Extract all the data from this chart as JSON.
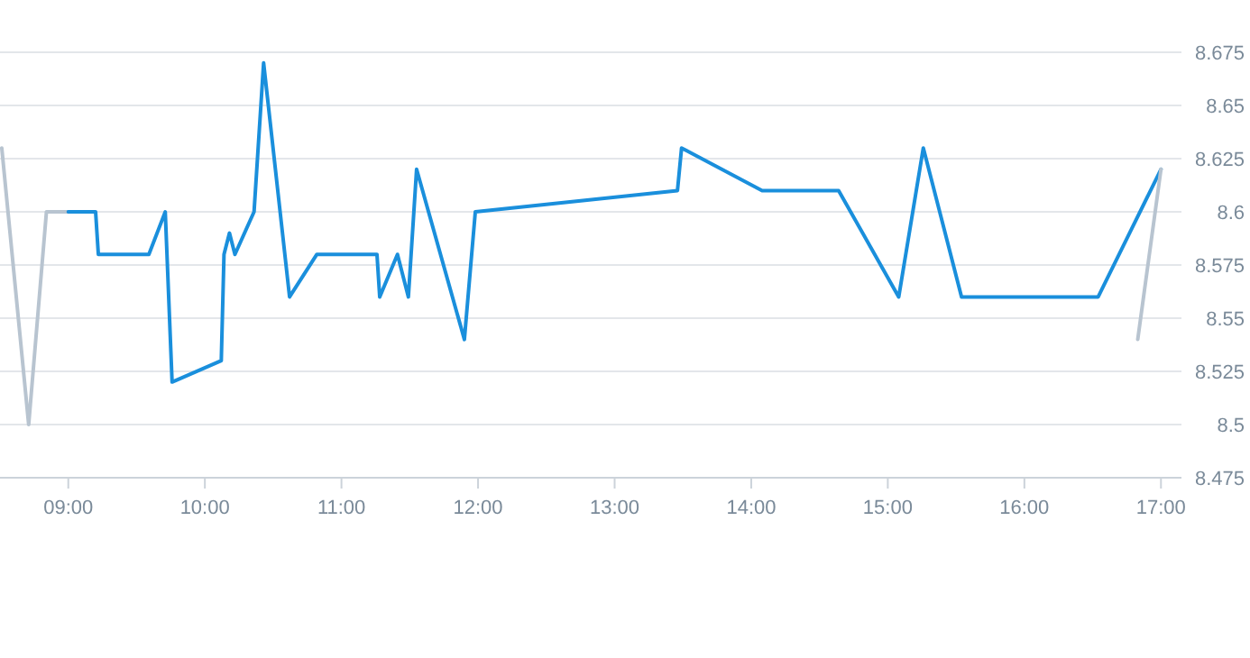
{
  "chart_data": {
    "type": "line",
    "xlim": [
      8.5,
      17.15
    ],
    "ylim": [
      8.475,
      8.675
    ],
    "yticks": [
      8.475,
      8.5,
      8.525,
      8.55,
      8.575,
      8.6,
      8.625,
      8.65,
      8.675
    ],
    "xticks": [
      {
        "value": 9,
        "label": "09:00"
      },
      {
        "value": 10,
        "label": "10:00"
      },
      {
        "value": 11,
        "label": "11:00"
      },
      {
        "value": 12,
        "label": "12:00"
      },
      {
        "value": 13,
        "label": "13:00"
      },
      {
        "value": 14,
        "label": "14:00"
      },
      {
        "value": 15,
        "label": "15:00"
      },
      {
        "value": 16,
        "label": "16:00"
      },
      {
        "value": 17,
        "label": "17:00"
      }
    ],
    "grid": "y",
    "marker": "none",
    "line_style": "solid",
    "series": [
      {
        "color": "#b8c4d0",
        "x": [
          8.513,
          8.71,
          8.84,
          9.0
        ],
        "values": [
          8.63,
          8.5,
          8.6,
          8.6
        ]
      },
      {
        "color": "#1a8fdc",
        "x": [
          9.0,
          9.2,
          9.22,
          9.59,
          9.71,
          9.76,
          10.12,
          10.14,
          10.18,
          10.22,
          10.36,
          10.43,
          10.62,
          10.82,
          11.26,
          11.28,
          11.41,
          11.49,
          11.55,
          11.9,
          11.98,
          13.46,
          13.49,
          14.08,
          14.64,
          15.08,
          15.26,
          15.54,
          16.54,
          17.0
        ],
        "values": [
          8.6,
          8.6,
          8.58,
          8.58,
          8.6,
          8.52,
          8.53,
          8.58,
          8.59,
          8.58,
          8.6,
          8.67,
          8.56,
          8.58,
          8.58,
          8.56,
          8.58,
          8.56,
          8.62,
          8.54,
          8.6,
          8.61,
          8.63,
          8.61,
          8.61,
          8.56,
          8.63,
          8.56,
          8.56,
          8.62
        ]
      },
      {
        "color": "#b8c4d0",
        "x": [
          16.83,
          17.0
        ],
        "values": [
          8.54,
          8.62
        ]
      }
    ]
  }
}
